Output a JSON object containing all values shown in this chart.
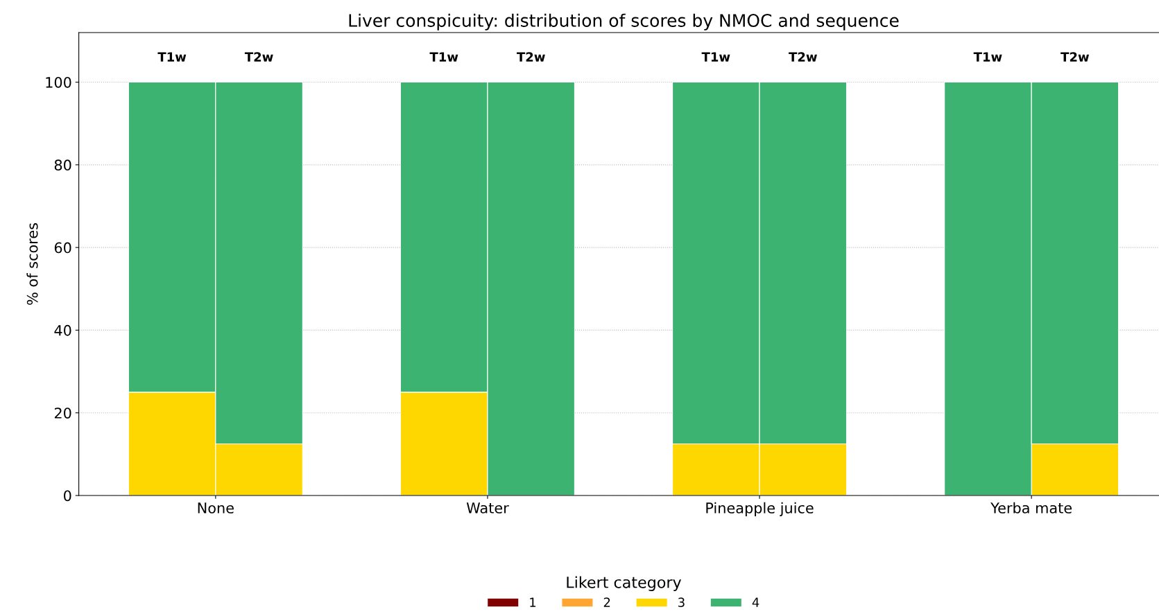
{
  "chart_data": {
    "type": "bar",
    "title": "Liver conspicuity: distribution of scores by NMOC and sequence",
    "ylabel": "% of scores",
    "legend_title": "Likert category",
    "categories": [
      "T1w",
      "T2w",
      "T1w",
      "T2w",
      "T1w",
      "T2w",
      "T1w",
      "T2w"
    ],
    "annotations": [
      "None",
      "Water",
      "Pineapple juice",
      "Yerba mate"
    ],
    "stacked": true,
    "series": [
      {
        "name": "1",
        "color": "#800000",
        "values": [
          0,
          0,
          0,
          0,
          0,
          0,
          0,
          0
        ]
      },
      {
        "name": "2",
        "color": "#ffa532",
        "values": [
          0,
          0,
          0,
          0,
          0,
          0,
          0,
          0
        ]
      },
      {
        "name": "3",
        "color": "#ffd700",
        "values": [
          25,
          12.5,
          25,
          0,
          12.5,
          12.5,
          0,
          12.5
        ]
      },
      {
        "name": "4",
        "color": "#3cb371",
        "values": [
          75,
          87.5,
          75,
          100,
          87.5,
          87.5,
          100,
          87.5
        ]
      }
    ],
    "ylim": [
      0,
      112
    ],
    "yticks": [
      0,
      20,
      40,
      60,
      80,
      100
    ],
    "grid": "y",
    "legend": "bottom"
  }
}
